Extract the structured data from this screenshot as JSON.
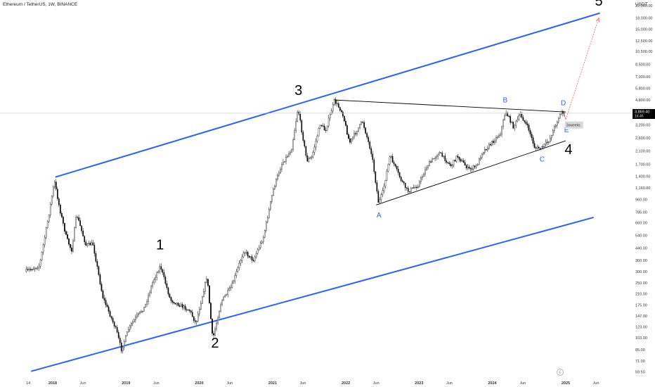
{
  "chart_data": {
    "type": "candlestick",
    "title": "Ethereum / TetherUS, 1W, BINANCE",
    "currency": "USDT",
    "yscale": "log",
    "ylim": [
      55,
      26000
    ],
    "y_ticks": [
      "22,000.00",
      "18,000.00",
      "15,000.00",
      "12,500.00",
      "10,500.00",
      "8,500.00",
      "7,000.00",
      "5,800.00",
      "4,800.00",
      "3,200.00",
      "2,600.00",
      "2,100.00",
      "1,700.00",
      "1,400.00",
      "1,160.00",
      "960.00",
      "785.00",
      "660.00",
      "540.00",
      "440.00",
      "360.00",
      "300.00",
      "250.00",
      "210.00",
      "175.00",
      "147.00",
      "123.00",
      "103.00",
      "85.00",
      "71.00",
      "59.50"
    ],
    "y_tick_values": [
      22000,
      18000,
      15000,
      12500,
      10500,
      8500,
      7000,
      5800,
      4800,
      3200,
      2600,
      2100,
      1700,
      1400,
      1160,
      960,
      785,
      660,
      540,
      440,
      360,
      300,
      250,
      210,
      175,
      147,
      123,
      103,
      85,
      71,
      59.5
    ],
    "x_ticks": [
      "14",
      "2018",
      "Jun",
      "2019",
      "Jun",
      "2020",
      "Jun",
      "2021",
      "Jun",
      "2022",
      "Jun",
      "2023",
      "Jun",
      "2024",
      "Jun",
      "2025",
      "Jun"
    ],
    "x_tick_dates": [
      "2017-09-01",
      "2018-01-01",
      "2018-06-01",
      "2019-01-01",
      "2019-06-01",
      "2020-01-01",
      "2020-06-01",
      "2021-01-01",
      "2021-06-01",
      "2022-01-01",
      "2022-06-01",
      "2023-01-01",
      "2023-06-01",
      "2024-01-01",
      "2024-06-01",
      "2025-01-01",
      "2025-06-01"
    ],
    "price_series": [
      {
        "date": "2017-08-20",
        "price": 300
      },
      {
        "date": "2017-11-01",
        "price": 330
      },
      {
        "date": "2017-12-15",
        "price": 720
      },
      {
        "date": "2018-01-14",
        "price": 1300
      },
      {
        "date": "2018-02-10",
        "price": 820
      },
      {
        "date": "2018-03-15",
        "price": 520
      },
      {
        "date": "2018-04-10",
        "price": 420
      },
      {
        "date": "2018-05-05",
        "price": 760
      },
      {
        "date": "2018-06-20",
        "price": 460
      },
      {
        "date": "2018-07-25",
        "price": 470
      },
      {
        "date": "2018-09-12",
        "price": 200
      },
      {
        "date": "2018-11-20",
        "price": 115
      },
      {
        "date": "2018-12-14",
        "price": 85
      },
      {
        "date": "2019-01-20",
        "price": 120
      },
      {
        "date": "2019-02-20",
        "price": 140
      },
      {
        "date": "2019-04-10",
        "price": 170
      },
      {
        "date": "2019-05-20",
        "price": 255
      },
      {
        "date": "2019-06-26",
        "price": 330
      },
      {
        "date": "2019-08-15",
        "price": 190
      },
      {
        "date": "2019-10-01",
        "price": 175
      },
      {
        "date": "2019-11-20",
        "price": 160
      },
      {
        "date": "2019-12-20",
        "price": 130
      },
      {
        "date": "2020-02-14",
        "price": 280
      },
      {
        "date": "2020-03-13",
        "price": 100
      },
      {
        "date": "2020-04-25",
        "price": 185
      },
      {
        "date": "2020-06-15",
        "price": 235
      },
      {
        "date": "2020-08-15",
        "price": 420
      },
      {
        "date": "2020-10-01",
        "price": 360
      },
      {
        "date": "2020-11-20",
        "price": 520
      },
      {
        "date": "2021-01-10",
        "price": 1150
      },
      {
        "date": "2021-02-20",
        "price": 1700
      },
      {
        "date": "2021-04-10",
        "price": 2150
      },
      {
        "date": "2021-05-12",
        "price": 4200
      },
      {
        "date": "2021-06-25",
        "price": 1800
      },
      {
        "date": "2021-07-20",
        "price": 1900
      },
      {
        "date": "2021-09-01",
        "price": 3300
      },
      {
        "date": "2021-09-25",
        "price": 2900
      },
      {
        "date": "2021-11-10",
        "price": 4750
      },
      {
        "date": "2021-12-20",
        "price": 3900
      },
      {
        "date": "2022-01-24",
        "price": 2400
      },
      {
        "date": "2022-03-30",
        "price": 3400
      },
      {
        "date": "2022-05-15",
        "price": 2000
      },
      {
        "date": "2022-06-18",
        "price": 900
      },
      {
        "date": "2022-07-10",
        "price": 1100
      },
      {
        "date": "2022-08-14",
        "price": 1950
      },
      {
        "date": "2022-10-10",
        "price": 1300
      },
      {
        "date": "2022-11-10",
        "price": 1100
      },
      {
        "date": "2022-12-30",
        "price": 1200
      },
      {
        "date": "2023-02-15",
        "price": 1650
      },
      {
        "date": "2023-04-15",
        "price": 2050
      },
      {
        "date": "2023-06-15",
        "price": 1650
      },
      {
        "date": "2023-07-15",
        "price": 1950
      },
      {
        "date": "2023-09-10",
        "price": 1560
      },
      {
        "date": "2023-10-20",
        "price": 1650
      },
      {
        "date": "2023-11-15",
        "price": 2050
      },
      {
        "date": "2023-12-28",
        "price": 2350
      },
      {
        "date": "2024-02-15",
        "price": 2800
      },
      {
        "date": "2024-03-12",
        "price": 4000
      },
      {
        "date": "2024-04-20",
        "price": 3100
      },
      {
        "date": "2024-05-25",
        "price": 3800
      },
      {
        "date": "2024-07-05",
        "price": 3000
      },
      {
        "date": "2024-08-05",
        "price": 2200
      },
      {
        "date": "2024-09-06",
        "price": 2200
      },
      {
        "date": "2024-10-15",
        "price": 2500
      },
      {
        "date": "2024-11-15",
        "price": 3200
      },
      {
        "date": "2024-12-16",
        "price": 4000
      },
      {
        "date": "2024-12-25",
        "price": 3869.4
      }
    ],
    "current_price_label": "3,869.40",
    "current_price_timer": "1d 4h",
    "annotations": [
      {
        "label": "1",
        "style": "wave-black",
        "date": "2019-06-20",
        "price": 430
      },
      {
        "label": "2",
        "style": "wave-black",
        "date": "2020-03-20",
        "price": 88
      },
      {
        "label": "3",
        "style": "wave-black",
        "date": "2021-05-10",
        "price": 5200
      },
      {
        "label": "4",
        "style": "wave-black",
        "date": "2025-01-15",
        "price": 2000
      },
      {
        "label": "5",
        "style": "wave-black",
        "date": "2025-06-15",
        "price": 22000
      },
      {
        "label": "A",
        "style": "wave-blue",
        "date": "2022-06-15",
        "price": 720
      },
      {
        "label": "B",
        "style": "wave-blue",
        "date": "2024-03-05",
        "price": 4600
      },
      {
        "label": "C",
        "style": "wave-blue",
        "date": "2024-09-05",
        "price": 1780
      },
      {
        "label": "D",
        "style": "wave-blue",
        "date": "2024-12-20",
        "price": 4400
      },
      {
        "label": "E",
        "style": "wave-blue",
        "date": "2025-01-05",
        "price": 2850
      }
    ],
    "marker_label": "3oweeks",
    "trendlines": [
      {
        "name": "channel-upper",
        "color": "#2962ff",
        "from": {
          "date": "2018-01-14",
          "price": 1380
        },
        "to": {
          "date": "2025-06-20",
          "price": 19500
        }
      },
      {
        "name": "channel-lower",
        "color": "#2962ff",
        "from": {
          "date": "2017-09-15",
          "price": 60
        },
        "to": {
          "date": "2025-05-20",
          "price": 720
        }
      },
      {
        "name": "triangle-upper",
        "color": "#000000",
        "from": {
          "date": "2021-11-01",
          "price": 4800
        },
        "to": {
          "date": "2025-01-01",
          "price": 3950
        }
      },
      {
        "name": "triangle-lower",
        "color": "#000000",
        "from": {
          "date": "2022-06-01",
          "price": 880
        },
        "to": {
          "date": "2025-01-01",
          "price": 2480
        }
      },
      {
        "name": "projection",
        "color": "#ff5a5a",
        "from": {
          "date": "2025-01-01",
          "price": 3500
        },
        "to": {
          "date": "2025-06-15",
          "price": 18000
        }
      }
    ]
  }
}
